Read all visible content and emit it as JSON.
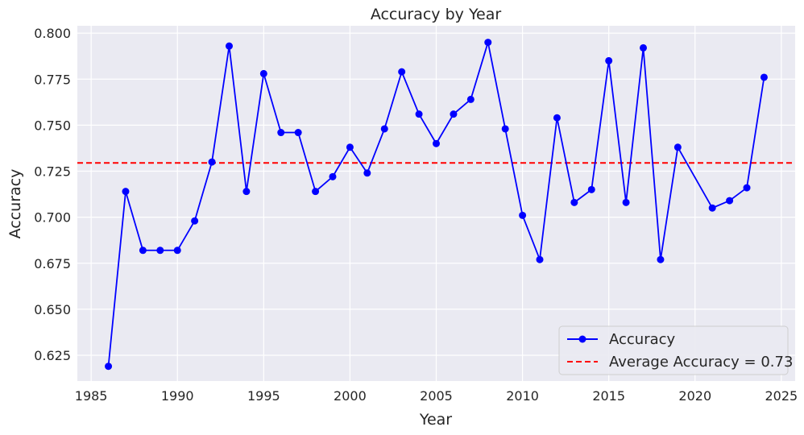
{
  "chart_data": {
    "type": "line",
    "title": "Accuracy by Year",
    "xlabel": "Year",
    "ylabel": "Accuracy",
    "xlim": [
      1984.2,
      2025.8
    ],
    "ylim": [
      0.611,
      0.804
    ],
    "xticks": [
      1985,
      1990,
      1995,
      2000,
      2005,
      2010,
      2015,
      2020,
      2025
    ],
    "yticks": [
      0.625,
      0.65,
      0.675,
      0.7,
      0.725,
      0.75,
      0.775,
      0.8
    ],
    "ytick_labels": [
      "0.625",
      "0.650",
      "0.675",
      "0.700",
      "0.725",
      "0.750",
      "0.775",
      "0.800"
    ],
    "grid": true,
    "legend_position": "lower-right",
    "series": [
      {
        "name": "Accuracy",
        "color": "#0000ff",
        "marker": "circle",
        "x": [
          1986,
          1987,
          1988,
          1989,
          1990,
          1991,
          1992,
          1993,
          1994,
          1995,
          1996,
          1997,
          1998,
          1999,
          2000,
          2001,
          2002,
          2003,
          2004,
          2005,
          2006,
          2007,
          2008,
          2009,
          2010,
          2011,
          2012,
          2013,
          2014,
          2015,
          2016,
          2017,
          2018,
          2019,
          2021,
          2022,
          2023,
          2024
        ],
        "y": [
          0.619,
          0.714,
          0.682,
          0.682,
          0.682,
          0.698,
          0.73,
          0.793,
          0.714,
          0.778,
          0.746,
          0.746,
          0.714,
          0.722,
          0.738,
          0.724,
          0.748,
          0.779,
          0.756,
          0.74,
          0.756,
          0.764,
          0.795,
          0.748,
          0.701,
          0.677,
          0.754,
          0.708,
          0.715,
          0.785,
          0.708,
          0.792,
          0.677,
          0.738,
          0.705,
          0.709,
          0.716,
          0.776
        ]
      }
    ],
    "reference_line": {
      "label": "Average Accuracy = 0.73",
      "value": 0.7295,
      "color": "#ff0000",
      "style": "dashed"
    }
  }
}
